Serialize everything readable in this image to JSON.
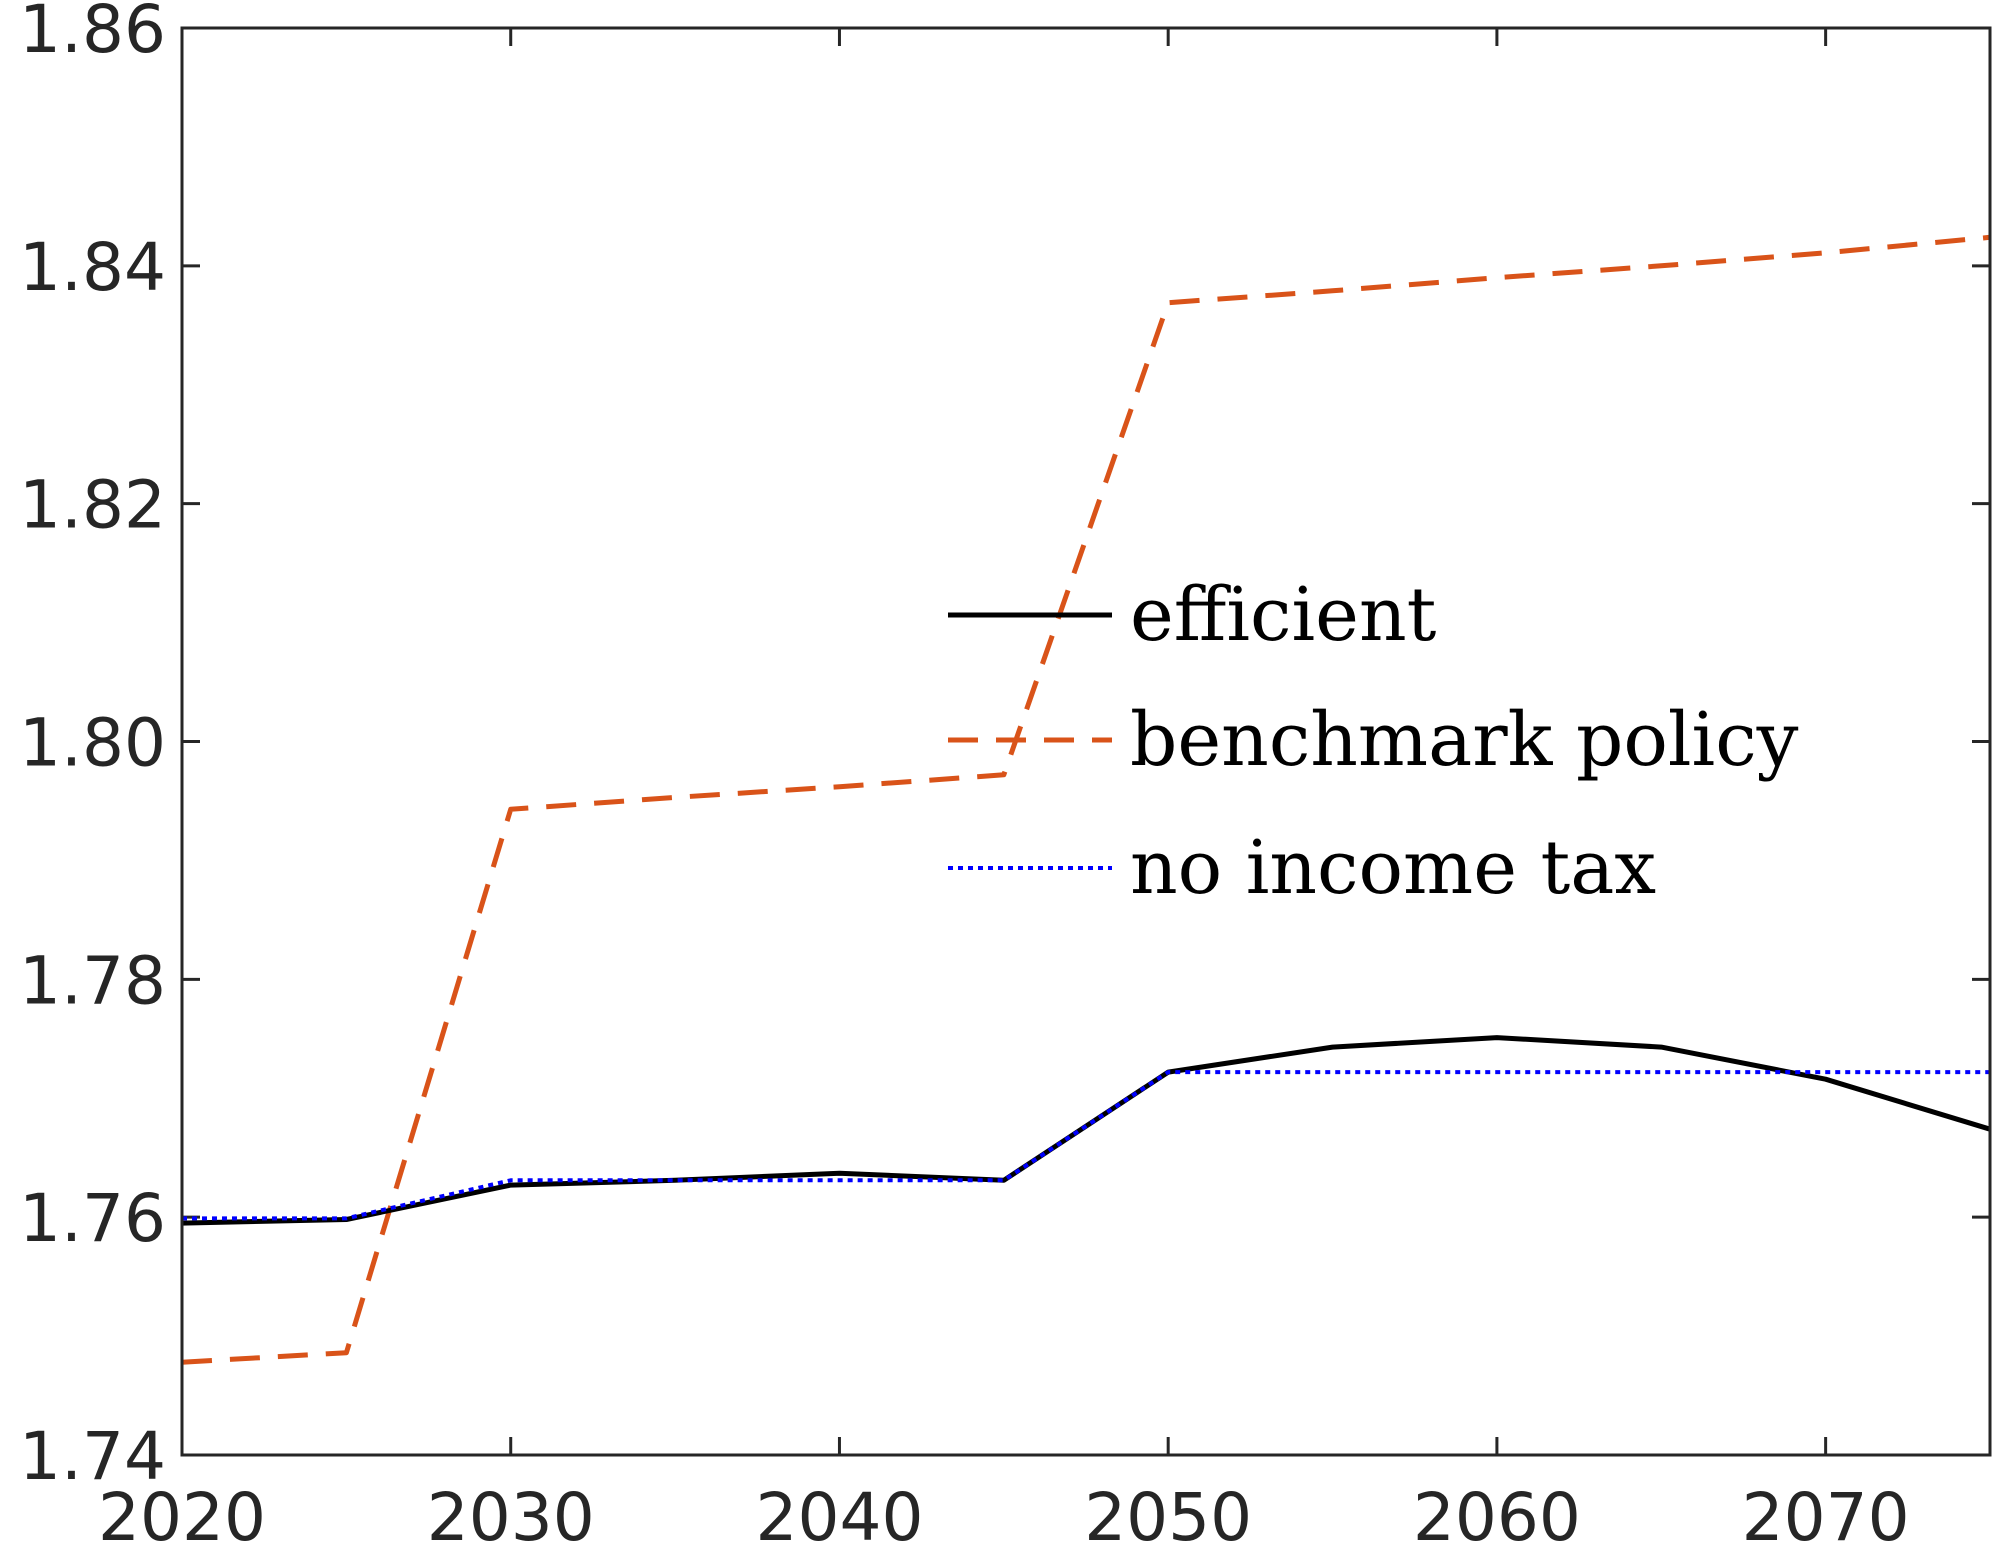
{
  "chart_data": {
    "type": "line",
    "title": "",
    "xlabel": "",
    "ylabel": "",
    "xlim": [
      2020,
      2075
    ],
    "ylim": [
      1.74,
      1.86
    ],
    "xticks": [
      2020,
      2030,
      2040,
      2050,
      2060,
      2070
    ],
    "xtick_labels": [
      "2020",
      "2030",
      "2040",
      "2050",
      "2060",
      "2070"
    ],
    "yticks": [
      1.74,
      1.76,
      1.78,
      1.8,
      1.82,
      1.84,
      1.86
    ],
    "ytick_labels": [
      "1.74",
      "1.76",
      "1.78",
      "1.80",
      "1.82",
      "1.84",
      "1.86"
    ],
    "grid": false,
    "legend_position": "center-right",
    "series": [
      {
        "name": "efficient",
        "color": "#000000",
        "style": "solid",
        "x": [
          2020,
          2025,
          2030,
          2035,
          2040,
          2045,
          2050,
          2055,
          2060,
          2065,
          2070,
          2075
        ],
        "y": [
          1.7595,
          1.7598,
          1.7627,
          1.7631,
          1.7637,
          1.7631,
          1.7722,
          1.7743,
          1.7751,
          1.7743,
          1.7716,
          1.7674
        ]
      },
      {
        "name": "benchmark policy",
        "color": "#D95319",
        "style": "dashed",
        "x": [
          2020,
          2025,
          2030,
          2035,
          2040,
          2045,
          2050,
          2055,
          2060,
          2065,
          2070,
          2075
        ],
        "y": [
          1.7478,
          1.7486,
          1.7943,
          1.7953,
          1.7962,
          1.7972,
          1.8369,
          1.8379,
          1.839,
          1.84,
          1.8411,
          1.8424
        ]
      },
      {
        "name": "no income tax",
        "color": "#0000FF",
        "style": "dotted",
        "x": [
          2020,
          2025,
          2030,
          2035,
          2040,
          2045,
          2050,
          2055,
          2060,
          2065,
          2070,
          2075
        ],
        "y": [
          1.7599,
          1.7599,
          1.7631,
          1.7631,
          1.7631,
          1.7631,
          1.7722,
          1.7722,
          1.7722,
          1.7722,
          1.7722,
          1.7722
        ]
      }
    ]
  }
}
